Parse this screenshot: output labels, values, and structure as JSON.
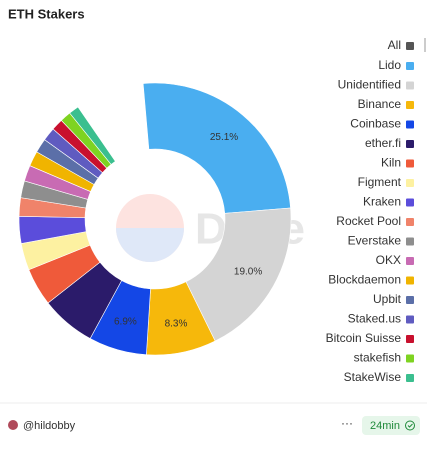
{
  "chart_data": {
    "type": "donut",
    "title": "ETH Stakers",
    "legend_toggle": "All",
    "watermark": "Dune",
    "series": [
      {
        "name": "Lido",
        "color": "#4aaef0",
        "value": 25.1,
        "value_label": "25.1%"
      },
      {
        "name": "Unidentified",
        "color": "#d4d4d4",
        "value": 19.0,
        "value_label": "19.0%"
      },
      {
        "name": "Binance",
        "color": "#f6b80b",
        "value": 8.3,
        "value_label": "8.3%"
      },
      {
        "name": "Coinbase",
        "color": "#1447e6",
        "value": 6.9,
        "value_label": "6.9%"
      },
      {
        "name": "ether.fi",
        "color": "#2b1b6a",
        "value": 6.5
      },
      {
        "name": "Kiln",
        "color": "#ef5a3a",
        "value": 4.5
      },
      {
        "name": "Figment",
        "color": "#fdf1a1",
        "value": 3.2
      },
      {
        "name": "Kraken",
        "color": "#5b4ddb",
        "value": 3.2
      },
      {
        "name": "Rocket Pool",
        "color": "#f0836a",
        "value": 2.2
      },
      {
        "name": "Everstake",
        "color": "#8e8e8e",
        "value": 2.0
      },
      {
        "name": "OKX",
        "color": "#c86bb3",
        "value": 1.9
      },
      {
        "name": "Blockdaemon",
        "color": "#f0b400",
        "value": 1.8
      },
      {
        "name": "Upbit",
        "color": "#5b6fa8",
        "value": 1.7
      },
      {
        "name": "Staked.us",
        "color": "#5f5bc0",
        "value": 1.6
      },
      {
        "name": "Bitcoin Suisse",
        "color": "#c8102e",
        "value": 1.4
      },
      {
        "name": "stakefish",
        "color": "#7ed321",
        "value": 1.3
      },
      {
        "name": "StakeWise",
        "color": "#3bbf8f",
        "value": 1.2
      }
    ]
  },
  "footer": {
    "author": "@hildobby",
    "age": "24min"
  }
}
